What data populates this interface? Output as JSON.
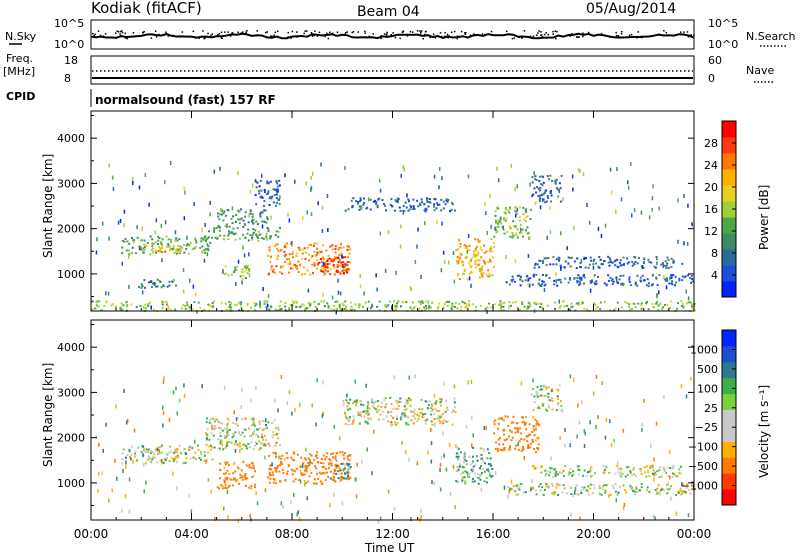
{
  "header": {
    "station": "Kodiak (fitACF)",
    "beam": "Beam 04",
    "date": "05/Aug/2014"
  },
  "strip": {
    "nsky_label": "N.Sky",
    "nsearch_label": "N.Search",
    "freq_label_1": "Freq.",
    "freq_label_2": "[MHz]",
    "nave_label": "Nave",
    "cpid_label": "CPID",
    "cpid_value": "normalsound (fast) 157 RF",
    "noise_ticks": [
      "10^5",
      "10^0"
    ],
    "freq_ticks": [
      "18",
      "8"
    ],
    "nave_ticks": [
      "60",
      "0"
    ]
  },
  "chart_data": [
    {
      "type": "heatmap",
      "title": "",
      "xlabel": "Time UT",
      "ylabel": "Slant Range [km]",
      "x_ticks": [
        "00:00",
        "04:00",
        "08:00",
        "12:00",
        "16:00",
        "20:00",
        "00:00"
      ],
      "xlim_hours": [
        0,
        24
      ],
      "y_ticks": [
        1000,
        2000,
        3000,
        4000
      ],
      "ylim": [
        180,
        4600
      ],
      "colorbar": {
        "label": "Power [dB]",
        "ticks": [
          "4",
          "8",
          "12",
          "16",
          "20",
          "24",
          "28"
        ],
        "range": [
          0,
          30
        ],
        "colors": [
          "#0026ff",
          "#1b4fd8",
          "#2c6b9c",
          "#3d8a68",
          "#4ea84a",
          "#9fcf3a",
          "#e8d21f",
          "#ffb000",
          "#ff7800",
          "#ff3a10",
          "#ff0000"
        ]
      },
      "echo_regions": [
        {
          "t0": 1.2,
          "t1": 4.8,
          "r0": 1450,
          "r1": 1850,
          "value": 12
        },
        {
          "t0": 1.8,
          "t1": 3.6,
          "r0": 1500,
          "r1": 1650,
          "value": 20
        },
        {
          "t0": 4.5,
          "t1": 7.5,
          "r0": 1750,
          "r1": 2050,
          "value": 12
        },
        {
          "t0": 5.0,
          "t1": 7.0,
          "r0": 2050,
          "r1": 2450,
          "value": 10
        },
        {
          "t0": 6.5,
          "t1": 7.5,
          "r0": 2500,
          "r1": 3100,
          "value": 6
        },
        {
          "t0": 7.0,
          "t1": 10.3,
          "r0": 1000,
          "r1": 1700,
          "value": 22
        },
        {
          "t0": 9.0,
          "t1": 10.2,
          "r0": 1000,
          "r1": 1450,
          "value": 28
        },
        {
          "t0": 5.2,
          "t1": 6.3,
          "r0": 900,
          "r1": 1200,
          "value": 14
        },
        {
          "t0": 1.8,
          "t1": 3.5,
          "r0": 700,
          "r1": 900,
          "value": 8
        },
        {
          "t0": 10.0,
          "t1": 14.5,
          "r0": 2400,
          "r1": 2700,
          "value": 6
        },
        {
          "t0": 14.5,
          "t1": 16.0,
          "r0": 900,
          "r1": 1800,
          "value": 20
        },
        {
          "t0": 16.0,
          "t1": 17.5,
          "r0": 1800,
          "r1": 2500,
          "value": 14
        },
        {
          "t0": 17.5,
          "t1": 18.7,
          "r0": 2600,
          "r1": 3200,
          "value": 6
        },
        {
          "t0": 16.5,
          "t1": 24.0,
          "r0": 750,
          "r1": 1000,
          "value": 6
        },
        {
          "t0": 17.5,
          "t1": 23.5,
          "r0": 1150,
          "r1": 1400,
          "value": 6
        },
        {
          "t0": 0.0,
          "t1": 24.0,
          "r0": 200,
          "r1": 420,
          "value": 14
        }
      ]
    },
    {
      "type": "heatmap",
      "title": "",
      "xlabel": "Time UT",
      "ylabel": "Slant Range [km]",
      "x_ticks": [
        "00:00",
        "04:00",
        "08:00",
        "12:00",
        "16:00",
        "20:00",
        "00:00"
      ],
      "xlim_hours": [
        0,
        24
      ],
      "y_ticks": [
        1000,
        2000,
        3000,
        4000
      ],
      "ylim": [
        180,
        4600
      ],
      "colorbar": {
        "label": "Velocity [m s⁻¹]",
        "ticks": [
          "1000",
          "500",
          "100",
          "25",
          "−25",
          "−100",
          "−500",
          "−1000"
        ],
        "colors": [
          "#ff0000",
          "#ff3a00",
          "#ff7a00",
          "#ffb000",
          "#c8c8c8",
          "#c8c8c8",
          "#7ad23a",
          "#3fae4a",
          "#2c7a8c",
          "#1f4fd0",
          "#0026ff"
        ]
      },
      "echo_regions": [
        {
          "t0": 1.2,
          "t1": 4.8,
          "r0": 1450,
          "r1": 1850,
          "value": 0
        },
        {
          "t0": 4.5,
          "t1": 7.5,
          "r0": 1750,
          "r1": 2450,
          "value": 0
        },
        {
          "t0": 5.0,
          "t1": 6.5,
          "r0": 900,
          "r1": 1500,
          "value": -150
        },
        {
          "t0": 7.0,
          "t1": 10.3,
          "r0": 1000,
          "r1": 1700,
          "value": -200
        },
        {
          "t0": 9.5,
          "t1": 10.3,
          "r0": 1100,
          "r1": 1500,
          "value": 80
        },
        {
          "t0": 10.0,
          "t1": 14.5,
          "r0": 2300,
          "r1": 2900,
          "value": 0
        },
        {
          "t0": 14.5,
          "t1": 16.0,
          "r0": 1000,
          "r1": 1800,
          "value": 80
        },
        {
          "t0": 16.0,
          "t1": 17.8,
          "r0": 1700,
          "r1": 2500,
          "value": -200
        },
        {
          "t0": 17.5,
          "t1": 18.7,
          "r0": 2600,
          "r1": 3200,
          "value": 0
        },
        {
          "t0": 16.5,
          "t1": 24.0,
          "r0": 750,
          "r1": 1000,
          "value": 0
        },
        {
          "t0": 17.5,
          "t1": 23.5,
          "r0": 1150,
          "r1": 1400,
          "value": 0
        }
      ]
    }
  ]
}
